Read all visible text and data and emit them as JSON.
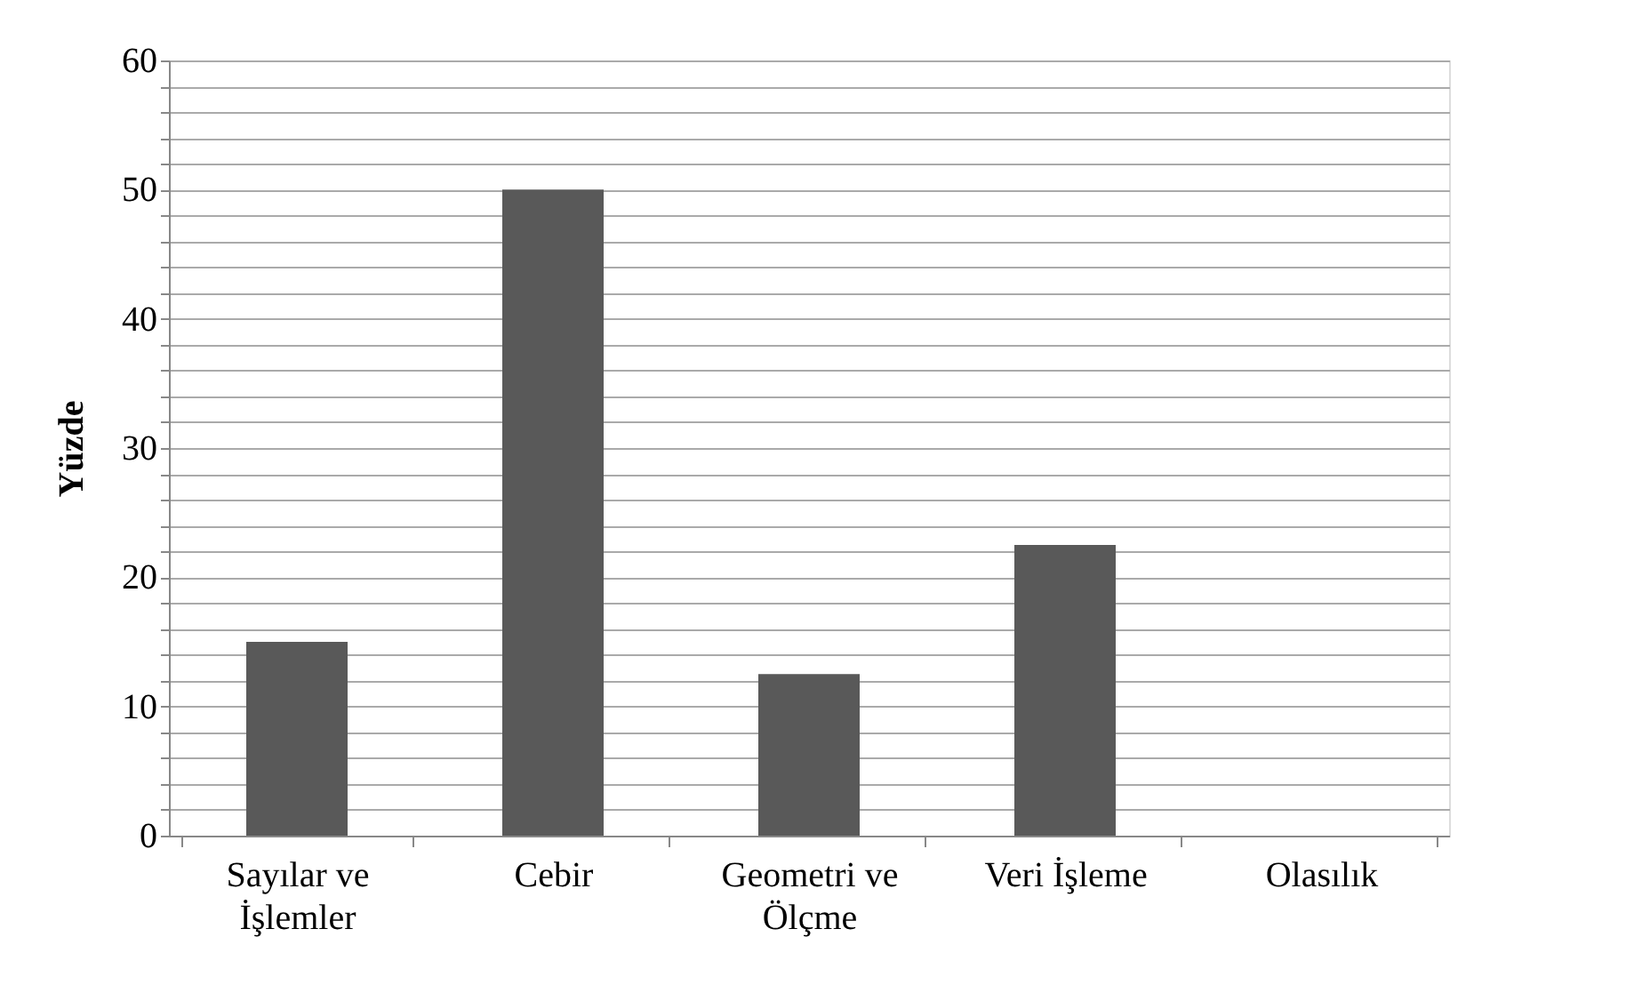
{
  "chart_data": {
    "type": "bar",
    "ylabel": "Yüzde",
    "categories": [
      "Sayılar ve İşlemler",
      "Cebir",
      "Geometri ve Ölçme",
      "Veri İşleme",
      "Olasılık"
    ],
    "values": [
      15,
      50,
      12.5,
      22.5,
      0
    ],
    "color": "#595959",
    "ylim": [
      0,
      60
    ],
    "yticks": [
      0,
      {
        "value": 2,
        "label": null
      },
      {
        "value": 4,
        "label": null
      },
      {
        "value": 6,
        "label": null
      },
      {
        "value": 8,
        "label": null
      },
      10,
      {
        "value": 12,
        "label": null
      },
      {
        "value": 14,
        "label": null
      },
      {
        "value": 16,
        "label": null
      },
      {
        "value": 18,
        "label": null
      },
      20,
      {
        "value": 22,
        "label": null
      },
      {
        "value": 24,
        "label": null
      },
      {
        "value": 26,
        "label": null
      },
      {
        "value": 28,
        "label": null
      },
      30,
      {
        "value": 32,
        "label": null
      },
      {
        "value": 34,
        "label": null
      },
      {
        "value": 36,
        "label": null
      },
      {
        "value": 38,
        "label": null
      },
      40,
      {
        "value": 42,
        "label": null
      },
      {
        "value": 44,
        "label": null
      },
      {
        "value": 46,
        "label": null
      },
      {
        "value": 48,
        "label": null
      },
      50,
      {
        "value": 52,
        "label": null
      },
      {
        "value": 54,
        "label": null
      },
      {
        "value": 56,
        "label": null
      },
      {
        "value": 58,
        "label": null
      },
      60
    ],
    "grid": "y"
  }
}
